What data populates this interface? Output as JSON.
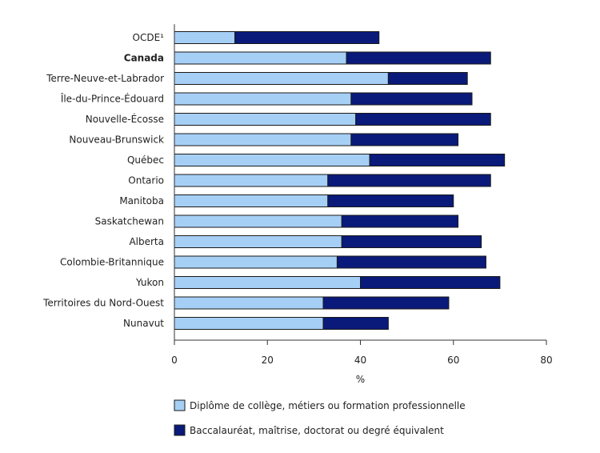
{
  "chart_data": {
    "type": "bar",
    "orientation": "horizontal",
    "stacked": true,
    "categories": [
      "OCDE¹",
      "Canada",
      "Terre-Neuve-et-Labrador",
      "Île-du-Prince-Édouard",
      "Nouvelle-Écosse",
      "Nouveau-Brunswick",
      "Québec",
      "Ontario",
      "Manitoba",
      "Saskatchewan",
      "Alberta",
      "Colombie-Britannique",
      "Yukon",
      "Territoires du Nord-Ouest",
      "Nunavut"
    ],
    "bold_categories": [
      "Canada"
    ],
    "series": [
      {
        "name": "Diplôme de collège, métiers ou formation professionnelle",
        "color": "#a6cff5",
        "values": [
          13,
          37,
          46,
          38,
          39,
          38,
          42,
          33,
          33,
          36,
          36,
          35,
          40,
          32,
          32
        ]
      },
      {
        "name": "Baccalauréat, maîtrise, doctorat ou degré équivalent",
        "color": "#0a1a7a",
        "values": [
          31,
          31,
          17,
          26,
          29,
          23,
          29,
          35,
          27,
          25,
          30,
          32,
          30,
          27,
          14
        ]
      }
    ],
    "xlabel": "%",
    "xlim": [
      0,
      80
    ],
    "xticks": [
      0,
      20,
      40,
      60,
      80
    ],
    "grid": false,
    "legend_position": "bottom"
  }
}
